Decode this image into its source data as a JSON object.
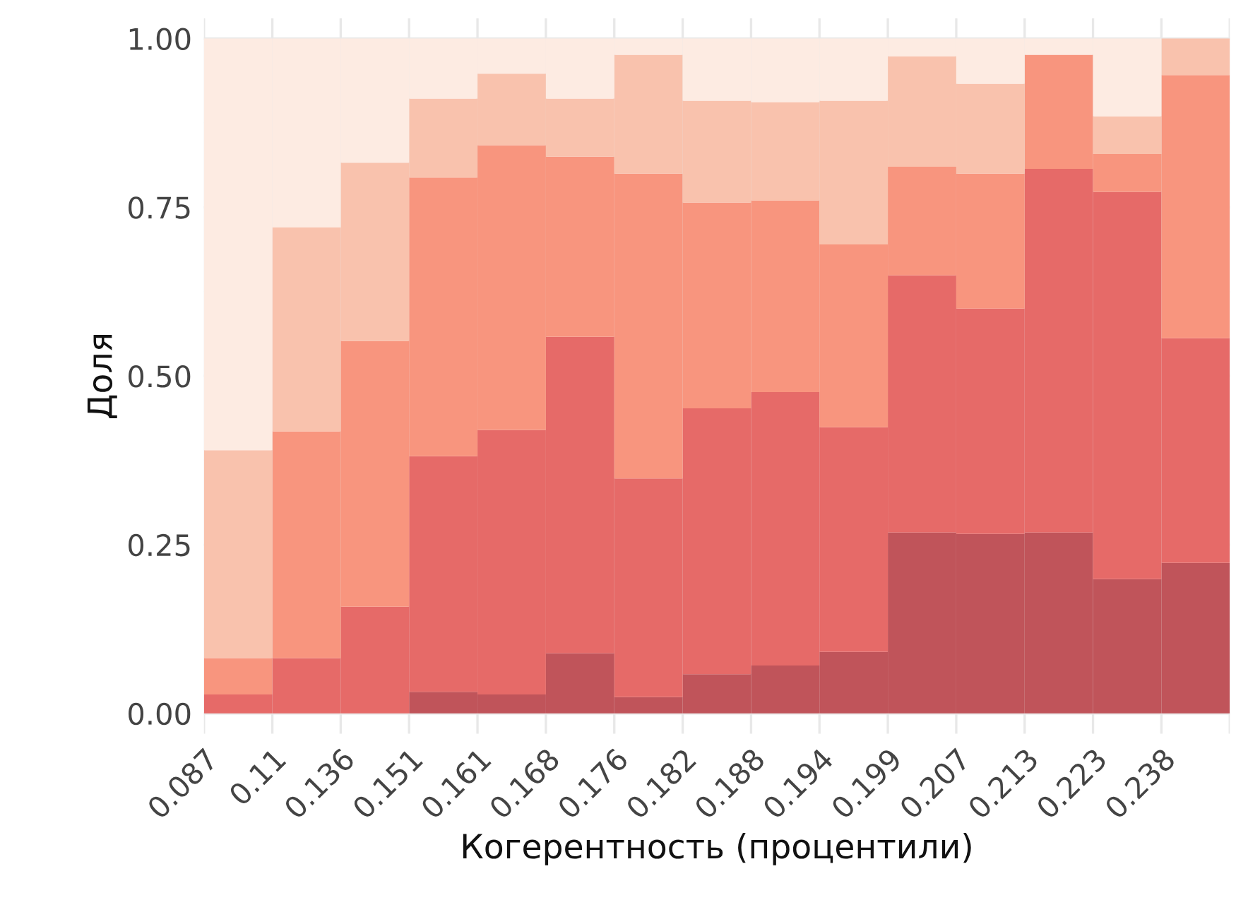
{
  "chart_data": {
    "type": "bar",
    "stacked": true,
    "xlabel": "Когерентность (процентили)",
    "ylabel": "Доля",
    "categories": [
      "0.087",
      "0.11",
      "0.136",
      "0.151",
      "0.161",
      "0.168",
      "0.176",
      "0.182",
      "0.188",
      "0.194",
      "0.199",
      "0.207",
      "0.213",
      "0.223",
      "0.238"
    ],
    "series": [
      {
        "color": "#c0545a",
        "values": [
          0,
          0,
          0,
          0.032,
          0.028,
          0.089,
          0.024,
          0.058,
          0.071,
          0.091,
          0.268,
          0.266,
          0.268,
          0.199,
          0.223
        ]
      },
      {
        "color": "#e66a68",
        "values": [
          0.028,
          0.082,
          0.158,
          0.349,
          0.392,
          0.469,
          0.324,
          0.394,
          0.405,
          0.333,
          0.381,
          0.334,
          0.539,
          0.574,
          0.333
        ]
      },
      {
        "color": "#f8957e",
        "values": [
          0.054,
          0.336,
          0.394,
          0.413,
          0.422,
          0.267,
          0.452,
          0.305,
          0.284,
          0.271,
          0.161,
          0.2,
          0.169,
          0.056,
          0.39
        ]
      },
      {
        "color": "#f9c2ad",
        "values": [
          0.308,
          0.302,
          0.264,
          0.117,
          0.106,
          0.086,
          0.176,
          0.151,
          0.146,
          0.213,
          0.164,
          0.133,
          0,
          0.056,
          0.054
        ]
      },
      {
        "color": "#fdebe2",
        "values": [
          0.61,
          0.28,
          0.184,
          0.089,
          0.052,
          0.089,
          0.024,
          0.092,
          0.094,
          0.092,
          0.026,
          0.067,
          0.024,
          0.115,
          0
        ]
      }
    ],
    "ylim": [
      -0.03,
      1.03
    ],
    "yticks": [
      {
        "value": 0,
        "label": "0.00"
      },
      {
        "value": 0.25,
        "label": "0.25"
      },
      {
        "value": 0.5,
        "label": "0.50"
      },
      {
        "value": 0.75,
        "label": "0.75"
      },
      {
        "value": 1,
        "label": "1.00"
      }
    ],
    "grid": true
  }
}
